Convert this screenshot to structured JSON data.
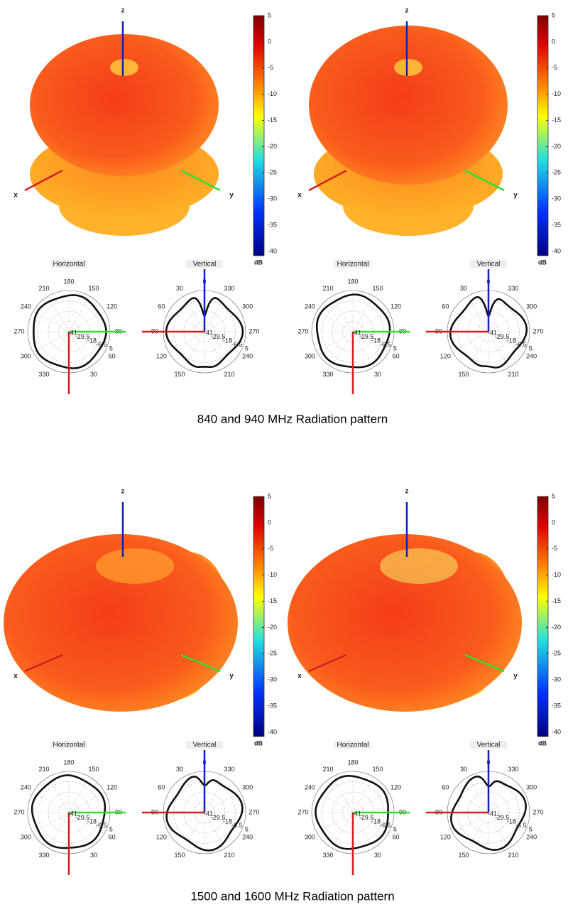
{
  "panels": [
    {
      "axes": {
        "x": "x",
        "y": "y",
        "z": "z"
      },
      "colorbar": {
        "ticks": [
          5,
          0,
          -5,
          -10,
          -15,
          -20,
          -25,
          -30,
          -35,
          -40
        ],
        "unit": "dB"
      },
      "horizontal": {
        "title": "Horizontal",
        "angles": [
          "180",
          "150",
          "120",
          "90",
          "60",
          "30",
          "330",
          "300",
          "270",
          "240",
          "210"
        ],
        "radial": [
          -41,
          -29.5,
          -18,
          -6.5,
          5
        ]
      },
      "vertical": {
        "title": "Vertical",
        "angles": [
          "0",
          "330",
          "300",
          "270",
          "240",
          "210",
          "150",
          "120",
          "90",
          "60",
          "30"
        ],
        "radial": [
          -41,
          -29.5,
          -18,
          -6.5,
          5
        ]
      }
    },
    {
      "axes": {
        "x": "x",
        "y": "y",
        "z": "z"
      },
      "colorbar": {
        "ticks": [
          5,
          0,
          -5,
          -10,
          -15,
          -20,
          -25,
          -30,
          -35,
          -40
        ],
        "unit": "dB"
      },
      "horizontal": {
        "title": "Horizontal",
        "angles": [
          "180",
          "150",
          "120",
          "90",
          "60",
          "30",
          "330",
          "300",
          "270",
          "240",
          "210"
        ],
        "radial": [
          -41,
          -29.5,
          -18,
          -6.5,
          5
        ]
      },
      "vertical": {
        "title": "Vertical",
        "angles": [
          "0",
          "330",
          "300",
          "270",
          "240",
          "210",
          "150",
          "120",
          "90",
          "60",
          "30"
        ],
        "radial": [
          -41,
          -29.5,
          -18,
          -6.5,
          5
        ]
      }
    },
    {
      "axes": {
        "x": "x",
        "y": "y",
        "z": "z"
      },
      "colorbar": {
        "ticks": [
          5,
          0,
          -5,
          -10,
          -15,
          -20,
          -25,
          -30,
          -35,
          -40
        ],
        "unit": "dB"
      },
      "horizontal": {
        "title": "Horizontal",
        "angles": [
          "180",
          "150",
          "120",
          "90",
          "60",
          "30",
          "330",
          "300",
          "270",
          "240",
          "210"
        ],
        "radial": [
          -41,
          -29.5,
          -18,
          -6.5,
          5
        ]
      },
      "vertical": {
        "title": "Vertical",
        "angles": [
          "0",
          "330",
          "300",
          "270",
          "240",
          "210",
          "150",
          "120",
          "90",
          "60",
          "30"
        ],
        "radial": [
          -41,
          -29.5,
          -18,
          -6.5,
          5
        ]
      }
    },
    {
      "axes": {
        "x": "x",
        "y": "y",
        "z": "z"
      },
      "colorbar": {
        "ticks": [
          5,
          0,
          -5,
          -10,
          -15,
          -20,
          -25,
          -30,
          -35,
          -40
        ],
        "unit": "dB"
      },
      "horizontal": {
        "title": "Horizontal",
        "angles": [
          "180",
          "150",
          "120",
          "90",
          "60",
          "30",
          "330",
          "300",
          "270",
          "240",
          "210"
        ],
        "radial": [
          -41,
          -29.5,
          -18,
          -6.5,
          5
        ]
      },
      "vertical": {
        "title": "Vertical",
        "angles": [
          "0",
          "330",
          "300",
          "270",
          "240",
          "210",
          "150",
          "120",
          "90",
          "60",
          "30"
        ],
        "radial": [
          -41,
          -29.5,
          -18,
          -6.5,
          5
        ]
      }
    }
  ],
  "captions": [
    "840 and 940 MHz Radiation pattern",
    "1500 and 1600 MHz Radiation pattern"
  ]
}
